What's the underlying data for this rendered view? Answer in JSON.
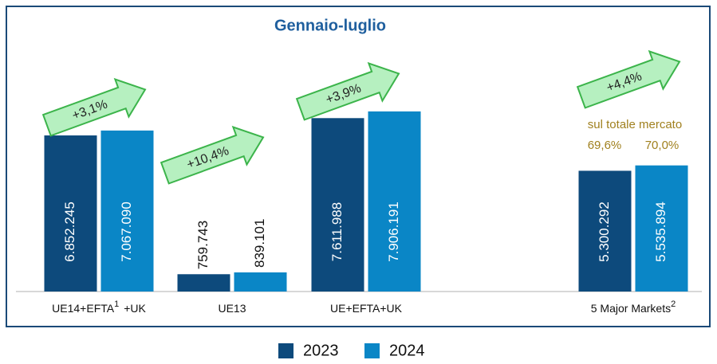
{
  "chart_data": {
    "type": "bar",
    "title": "Gennaio-luglio",
    "categories": [
      [
        "UE14+EFTA",
        "1",
        "+UK"
      ],
      [
        "UE13"
      ],
      [
        "UE+EFTA+UK"
      ],
      [
        "5 Major Markets",
        "2"
      ]
    ],
    "series": [
      {
        "name": "2023",
        "color": "#0d4a7c",
        "values": [
          6852245,
          759743,
          7611988,
          5300292
        ],
        "value_labels": [
          "6.852.245",
          "759.743",
          "7.611.988",
          "5.300.292"
        ]
      },
      {
        "name": "2024",
        "color": "#0a86c6",
        "values": [
          7067090,
          839101,
          7906191,
          5535894
        ],
        "value_labels": [
          "7.067.090",
          "839.101",
          "7.906.191",
          "5.535.894"
        ]
      }
    ],
    "ylim": [
      0,
      10000000
    ],
    "growth": {
      "values": [
        3.1,
        10.4,
        3.9,
        4.4
      ],
      "value_labels": [
        "+3,1%",
        "+10,4%",
        "+3,9%",
        "+4,4%"
      ],
      "color": "#b6f0c0"
    },
    "share": {
      "label": "sul totale mercato",
      "values": [
        69.6,
        70.0
      ],
      "value_labels": [
        "69,6%",
        "70,0%"
      ],
      "color": "#a0801e"
    },
    "legend": "bottom"
  }
}
